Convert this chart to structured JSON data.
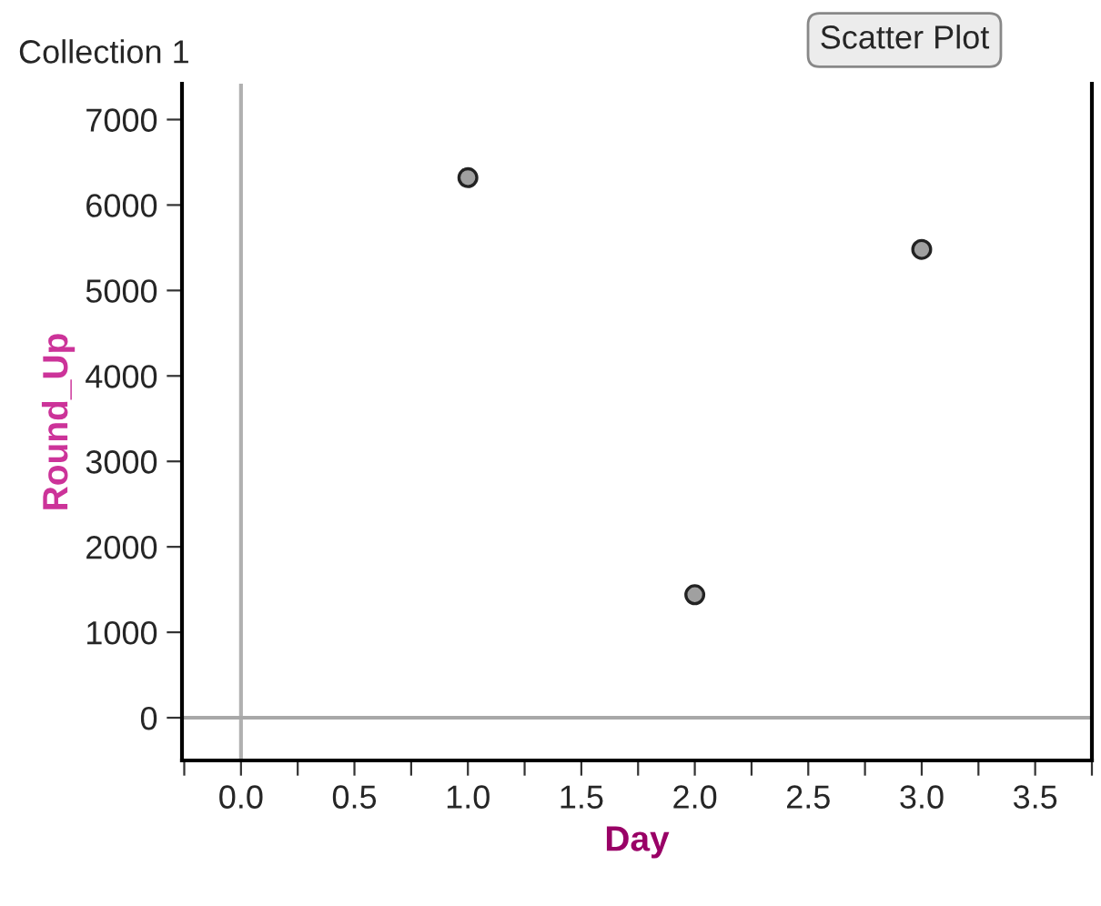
{
  "chart_data": {
    "type": "scatter",
    "title": "Collection 1",
    "xlabel": "Day",
    "ylabel": "Round_Up",
    "x": [
      1,
      2,
      3
    ],
    "series": [
      {
        "color": "#a0a0a0",
        "values": [
          6320,
          1440,
          5480
        ]
      }
    ],
    "marker": "circle",
    "xlim": [
      -0.26,
      3.75
    ],
    "ylim": [
      -500,
      7420
    ],
    "xticks": [
      {
        "value": -0.25,
        "label": null
      },
      {
        "value": 0,
        "label": "0.0"
      },
      {
        "value": 0.25,
        "label": null
      },
      {
        "value": 0.5,
        "label": "0.5"
      },
      {
        "value": 0.75,
        "label": null
      },
      {
        "value": 1,
        "label": "1.0"
      },
      {
        "value": 1.25,
        "label": null
      },
      {
        "value": 1.5,
        "label": "1.5"
      },
      {
        "value": 1.75,
        "label": null
      },
      {
        "value": 2,
        "label": "2.0"
      },
      {
        "value": 2.25,
        "label": null
      },
      {
        "value": 2.5,
        "label": "2.5"
      },
      {
        "value": 2.75,
        "label": null
      },
      {
        "value": 3,
        "label": "3.0"
      },
      {
        "value": 3.25,
        "label": null
      },
      {
        "value": 3.5,
        "label": "3.5"
      },
      {
        "value": 3.75,
        "label": null
      }
    ],
    "yticks": [
      0,
      1000,
      2000,
      3000,
      4000,
      5000,
      6000,
      7000
    ],
    "ref_lines": [
      {
        "axis": "x",
        "value": 0,
        "color": "#b0b0b0"
      },
      {
        "axis": "y",
        "value": 0,
        "color": "#a8a8a8"
      }
    ],
    "annotations": [
      "Scatter Plot"
    ],
    "grid": false,
    "legend": false
  }
}
